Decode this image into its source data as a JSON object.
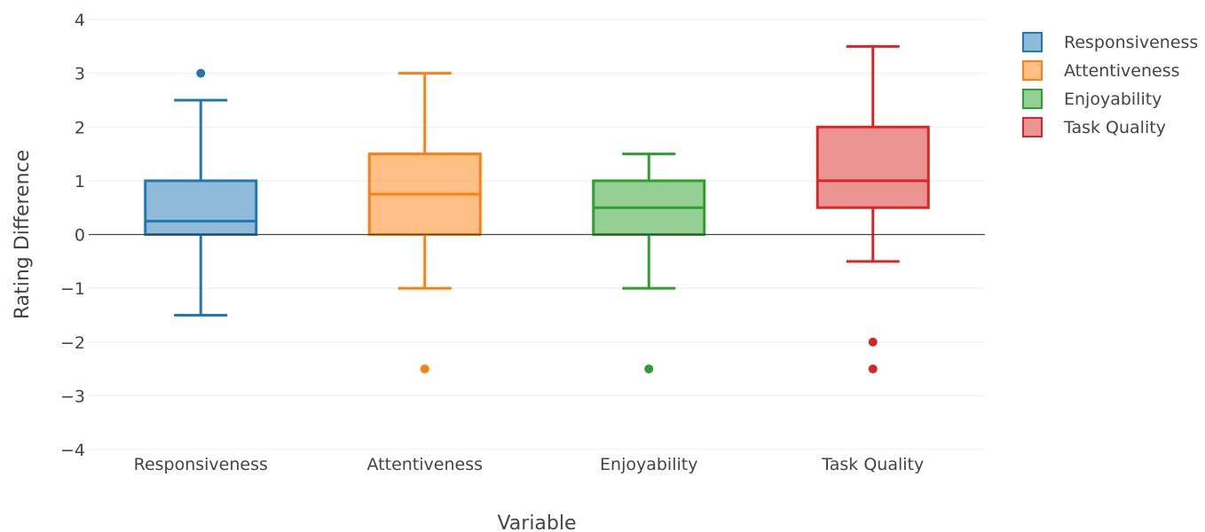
{
  "chart_data": {
    "type": "box",
    "title": "",
    "xlabel": "Variable",
    "ylabel": "Rating Difference",
    "ylim": [
      -4,
      4
    ],
    "yticks": [
      -4,
      -3,
      -2,
      -1,
      0,
      1,
      2,
      3,
      4
    ],
    "ytick_labels": [
      "−4",
      "−3",
      "−2",
      "−1",
      "0",
      "1",
      "2",
      "3",
      "4"
    ],
    "grid": true,
    "zero_line": true,
    "legend_position": "top-right",
    "categories": [
      "Responsiveness",
      "Attentiveness",
      "Enjoyability",
      "Task Quality"
    ],
    "series": [
      {
        "name": "Responsiveness",
        "color": "#1f77b4",
        "min": -1.5,
        "q1": 0,
        "median": 0.25,
        "q3": 1,
        "max": 2.5,
        "outliers": [
          3
        ]
      },
      {
        "name": "Attentiveness",
        "color": "#ff7f0e",
        "min": -1,
        "q1": 0,
        "median": 0.75,
        "q3": 1.5,
        "max": 3,
        "outliers": [
          -2.5
        ]
      },
      {
        "name": "Enjoyability",
        "color": "#2ca02c",
        "min": -1,
        "q1": 0,
        "median": 0.5,
        "q3": 1,
        "max": 1.5,
        "outliers": [
          -2.5
        ]
      },
      {
        "name": "Task Quality",
        "color": "#d62728",
        "min": -0.5,
        "q1": 0.5,
        "median": 1,
        "q3": 2,
        "max": 3.5,
        "outliers": [
          -2,
          -2.5
        ]
      }
    ]
  }
}
